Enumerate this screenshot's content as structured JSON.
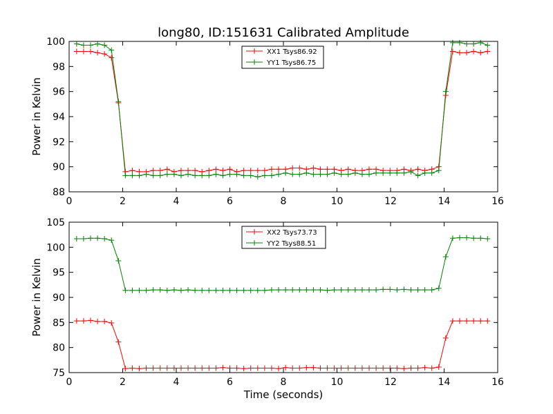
{
  "chart_data": [
    {
      "type": "line",
      "title": "long80, ID:151631 Calibrated Amplitude",
      "xlabel": "",
      "ylabel": "Power in Kelvin",
      "xlim": [
        0,
        16
      ],
      "ylim": [
        88,
        100
      ],
      "xticks": [
        0,
        2,
        4,
        6,
        8,
        10,
        12,
        14,
        16
      ],
      "yticks": [
        88,
        90,
        92,
        94,
        96,
        98,
        100
      ],
      "grid": false,
      "legend": "top-center",
      "x": [
        0.28,
        0.54,
        0.8,
        1.06,
        1.32,
        1.58,
        1.84,
        2.1,
        2.36,
        2.62,
        2.88,
        3.14,
        3.4,
        3.66,
        3.92,
        4.18,
        4.44,
        4.7,
        4.96,
        5.22,
        5.48,
        5.74,
        6.0,
        6.26,
        6.52,
        6.78,
        7.04,
        7.3,
        7.56,
        7.82,
        8.08,
        8.34,
        8.6,
        8.86,
        9.12,
        9.38,
        9.64,
        9.9,
        10.16,
        10.42,
        10.68,
        10.94,
        11.2,
        11.46,
        11.72,
        11.98,
        12.24,
        12.5,
        12.76,
        13.02,
        13.28,
        13.54,
        13.8,
        14.06,
        14.32,
        14.58,
        14.84,
        15.1,
        15.36,
        15.62
      ],
      "series": [
        {
          "name": "XX1 Tsys86.92",
          "color": "#ff0000",
          "values": [
            99.2,
            99.2,
            99.2,
            99.1,
            99.0,
            98.7,
            95.1,
            89.6,
            89.7,
            89.6,
            89.6,
            89.7,
            89.7,
            89.8,
            89.6,
            89.7,
            89.7,
            89.7,
            89.6,
            89.7,
            89.8,
            89.7,
            89.8,
            89.6,
            89.7,
            89.7,
            89.7,
            89.7,
            89.8,
            89.8,
            89.8,
            89.9,
            89.9,
            89.8,
            89.9,
            89.8,
            89.8,
            89.8,
            89.7,
            89.8,
            89.7,
            89.7,
            89.8,
            89.8,
            89.7,
            89.7,
            89.7,
            89.8,
            89.7,
            89.8,
            89.7,
            89.8,
            90.0,
            95.7,
            99.2,
            99.1,
            99.1,
            99.2,
            99.1,
            99.2
          ]
        },
        {
          "name": "YY1 Tsys86.75",
          "color": "#008000",
          "values": [
            99.8,
            99.7,
            99.7,
            99.8,
            99.7,
            99.3,
            95.2,
            89.3,
            89.3,
            89.3,
            89.4,
            89.3,
            89.3,
            89.4,
            89.4,
            89.3,
            89.4,
            89.3,
            89.3,
            89.3,
            89.4,
            89.3,
            89.4,
            89.4,
            89.3,
            89.3,
            89.2,
            89.3,
            89.3,
            89.4,
            89.5,
            89.4,
            89.4,
            89.5,
            89.4,
            89.4,
            89.4,
            89.5,
            89.4,
            89.4,
            89.5,
            89.4,
            89.4,
            89.5,
            89.5,
            89.5,
            89.5,
            89.5,
            89.6,
            89.3,
            89.5,
            89.5,
            89.7,
            96.0,
            99.9,
            99.9,
            99.8,
            99.8,
            99.9,
            99.7
          ]
        }
      ]
    },
    {
      "type": "line",
      "title": "",
      "xlabel": "Time (seconds)",
      "ylabel": "Power in Kelvin",
      "xlim": [
        0,
        16
      ],
      "ylim": [
        75,
        105
      ],
      "xticks": [
        0,
        2,
        4,
        6,
        8,
        10,
        12,
        14,
        16
      ],
      "yticks": [
        75,
        80,
        85,
        90,
        95,
        100,
        105
      ],
      "grid": false,
      "legend": "top-center",
      "x": [
        0.28,
        0.54,
        0.8,
        1.06,
        1.32,
        1.58,
        1.84,
        2.1,
        2.36,
        2.62,
        2.88,
        3.14,
        3.4,
        3.66,
        3.92,
        4.18,
        4.44,
        4.7,
        4.96,
        5.22,
        5.48,
        5.74,
        6.0,
        6.26,
        6.52,
        6.78,
        7.04,
        7.3,
        7.56,
        7.82,
        8.08,
        8.34,
        8.6,
        8.86,
        9.12,
        9.38,
        9.64,
        9.9,
        10.16,
        10.42,
        10.68,
        10.94,
        11.2,
        11.46,
        11.72,
        11.98,
        12.24,
        12.5,
        12.76,
        13.02,
        13.28,
        13.54,
        13.8,
        14.06,
        14.32,
        14.58,
        14.84,
        15.1,
        15.36,
        15.62
      ],
      "series": [
        {
          "name": "XX2 Tsys73.73",
          "color": "#ff0000",
          "values": [
            85.3,
            85.3,
            85.4,
            85.2,
            85.2,
            84.9,
            81.1,
            75.8,
            75.9,
            75.8,
            75.9,
            75.9,
            75.9,
            75.9,
            75.9,
            75.9,
            75.9,
            75.9,
            75.9,
            75.9,
            75.9,
            76.0,
            75.9,
            75.9,
            75.8,
            75.9,
            75.9,
            75.9,
            75.9,
            75.8,
            76.0,
            75.9,
            75.9,
            76.0,
            76.0,
            75.9,
            75.9,
            75.9,
            75.9,
            75.9,
            75.9,
            75.9,
            75.9,
            75.9,
            75.9,
            75.9,
            75.9,
            75.8,
            75.9,
            75.9,
            76.0,
            75.9,
            76.1,
            81.9,
            85.3,
            85.3,
            85.3,
            85.3,
            85.3,
            85.3
          ]
        },
        {
          "name": "YY2 Tsys88.51",
          "color": "#008000",
          "values": [
            101.7,
            101.7,
            101.8,
            101.8,
            101.7,
            101.4,
            97.3,
            91.4,
            91.4,
            91.4,
            91.4,
            91.5,
            91.5,
            91.4,
            91.5,
            91.4,
            91.5,
            91.4,
            91.4,
            91.4,
            91.4,
            91.4,
            91.4,
            91.4,
            91.4,
            91.4,
            91.4,
            91.4,
            91.5,
            91.5,
            91.5,
            91.5,
            91.5,
            91.5,
            91.5,
            91.5,
            91.4,
            91.5,
            91.5,
            91.5,
            91.5,
            91.5,
            91.5,
            91.5,
            91.6,
            91.6,
            91.5,
            91.6,
            91.5,
            91.5,
            91.5,
            91.5,
            91.8,
            98.1,
            101.8,
            101.9,
            101.9,
            101.8,
            101.8,
            101.7
          ]
        }
      ]
    }
  ]
}
